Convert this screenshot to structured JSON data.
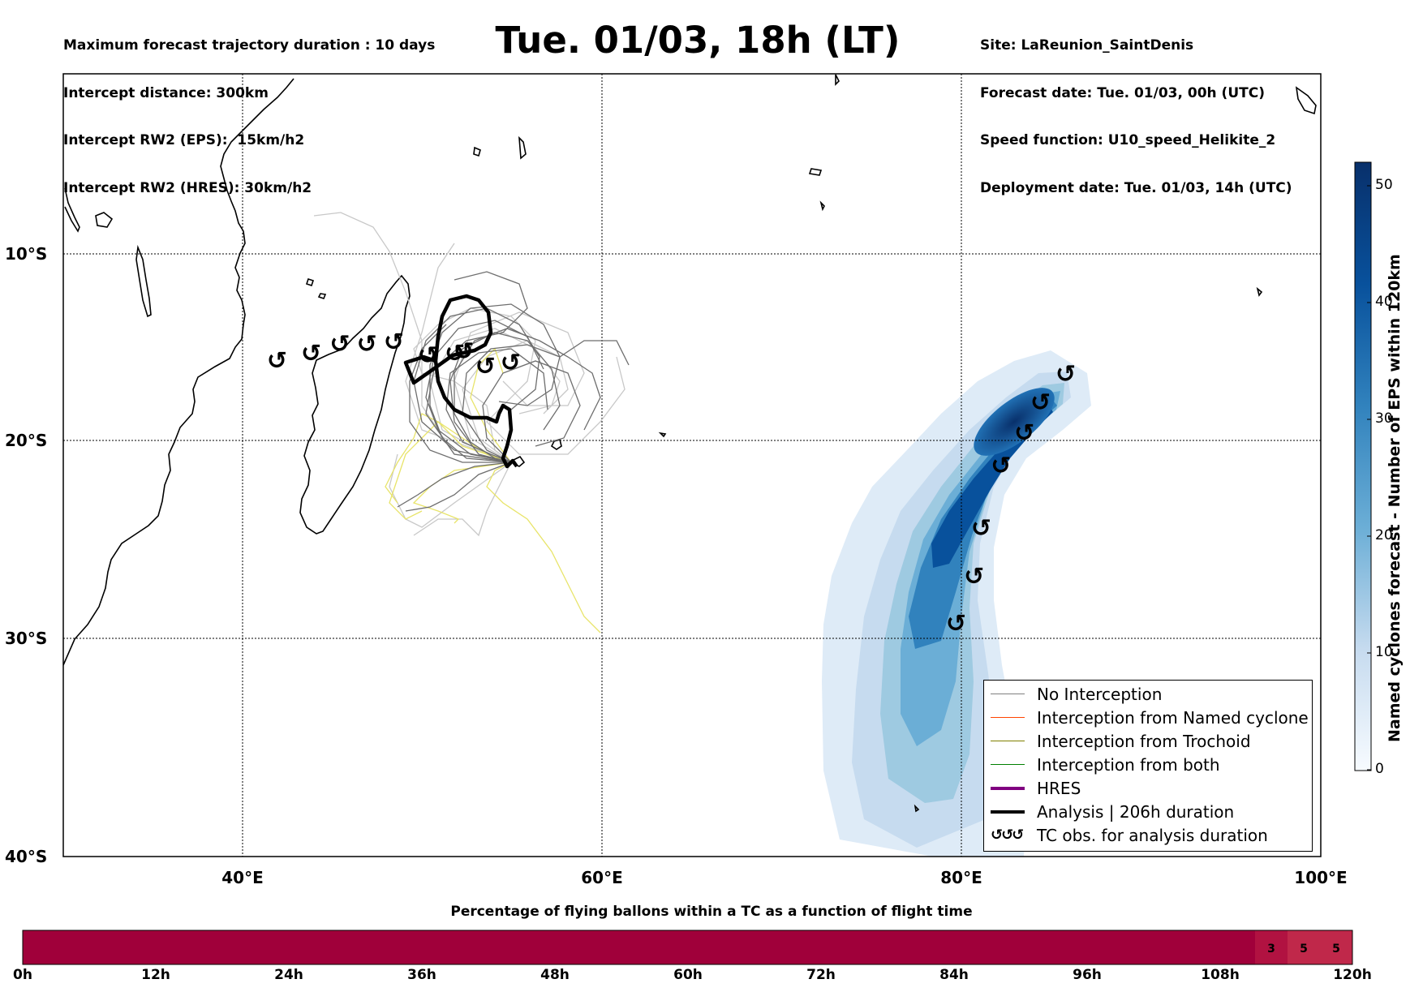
{
  "header": {
    "info_left": [
      "Maximum forecast trajectory duration : 10 days",
      "Intercept distance: 300km",
      "Intercept RW2 (EPS):  15km/h2",
      "Intercept RW2 (HRES): 30km/h2"
    ],
    "title": "Tue. 01/03, 18h (LT)",
    "info_right": [
      "Site: LaReunion_SaintDenis",
      "Forecast date: Tue. 01/03, 00h (UTC)",
      "Speed function: U10_speed_Helikite_2",
      "Deployment date: Tue. 01/03, 14h (UTC)"
    ]
  },
  "map": {
    "lat_labels": [
      "10°S",
      "20°S",
      "30°S",
      "40°S"
    ],
    "lon_labels": [
      "40°E",
      "60°E",
      "80°E",
      "100°E"
    ],
    "extent": {
      "lon": [
        30,
        100
      ],
      "lat_top": -0.3,
      "lat_bottom": -40
    },
    "tc_symbol": "↺",
    "tc_track_west": [
      {
        "lon": 41.9,
        "lat": -16.0
      },
      {
        "lon": 43.8,
        "lat": -15.6
      },
      {
        "lon": 45.4,
        "lat": -15.1
      },
      {
        "lon": 46.9,
        "lat": -15.1
      },
      {
        "lon": 48.4,
        "lat": -15.0
      },
      {
        "lon": 50.3,
        "lat": -15.7
      },
      {
        "lon": 51.8,
        "lat": -15.6
      },
      {
        "lon": 52.3,
        "lat": -15.5
      },
      {
        "lon": 53.5,
        "lat": -16.3
      },
      {
        "lon": 54.9,
        "lat": -16.1
      }
    ],
    "tc_track_east": [
      {
        "lon": 85.8,
        "lat": -16.7
      },
      {
        "lon": 84.4,
        "lat": -18.2
      },
      {
        "lon": 83.5,
        "lat": -19.8
      },
      {
        "lon": 82.2,
        "lat": -21.5
      },
      {
        "lon": 81.1,
        "lat": -24.7
      },
      {
        "lon": 80.7,
        "lat": -27.1
      },
      {
        "lon": 79.7,
        "lat": -29.4
      }
    ]
  },
  "colorbar": {
    "title": "Named cyclones forecast - Number of EPS within 120km",
    "ticks": [
      "0",
      "10",
      "20",
      "30",
      "40",
      "50"
    ],
    "range": [
      0,
      52
    ],
    "colors": [
      "#f7fbff",
      "#08306b"
    ]
  },
  "legend": {
    "items": [
      {
        "label": "No Interception",
        "color": "#808080",
        "width": 1.2
      },
      {
        "label": "Interception from Named cyclone",
        "color": "#ff4500",
        "width": 1.2
      },
      {
        "label": "Interception from Trochoid",
        "color": "#808000",
        "width": 1.2
      },
      {
        "label": "Interception from both",
        "color": "#008000",
        "width": 1.2
      },
      {
        "label": "HRES",
        "color": "#800080",
        "width": 4
      },
      {
        "label": "Analysis | 206h duration",
        "color": "#000000",
        "width": 4
      },
      {
        "label": "TC obs. for analysis duration",
        "color": "#000000",
        "width": 0
      }
    ],
    "tc_obs_symbol": "↺↺↺"
  },
  "timebar": {
    "title": "Percentage of flying ballons within a TC as a function of flight time",
    "hours": [
      "0h",
      "12h",
      "24h",
      "36h",
      "48h",
      "60h",
      "72h",
      "84h",
      "96h",
      "108h",
      "120h"
    ],
    "end_values": [
      3,
      5,
      5
    ],
    "main_color": "#a0003a",
    "end_color": "#c0284a"
  }
}
